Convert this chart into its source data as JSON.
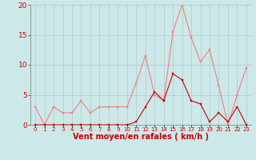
{
  "hours": [
    0,
    1,
    2,
    3,
    4,
    5,
    6,
    7,
    8,
    9,
    10,
    11,
    12,
    13,
    14,
    15,
    16,
    17,
    18,
    19,
    20,
    21,
    22,
    23
  ],
  "rafales": [
    3,
    0,
    3,
    2,
    2,
    4,
    2,
    3,
    3,
    3,
    3,
    7,
    11.5,
    5,
    4,
    15.5,
    20,
    14.5,
    10.5,
    12.5,
    6.5,
    0,
    5,
    9.5
  ],
  "vent_moyen": [
    0,
    0,
    0,
    0,
    0,
    0,
    0,
    0,
    0,
    0,
    0,
    0.5,
    3,
    5.5,
    4,
    8.5,
    7.5,
    4,
    3.5,
    0.5,
    2,
    0.5,
    3,
    0
  ],
  "rafales_color": "#f08080",
  "vent_moyen_color": "#cc0000",
  "bg_color": "#cce8e8",
  "grid_color": "#aacccc",
  "xlabel": "Vent moyen/en rafales ( km/h )",
  "xlabel_color": "#cc0000",
  "tick_color": "#cc0000",
  "ylim": [
    0,
    20
  ],
  "yticks": [
    0,
    5,
    10,
    15,
    20
  ],
  "ylabel_fontsize": 6.5,
  "xlabel_fontsize": 7,
  "xtick_fontsize": 5,
  "marker_size": 2
}
